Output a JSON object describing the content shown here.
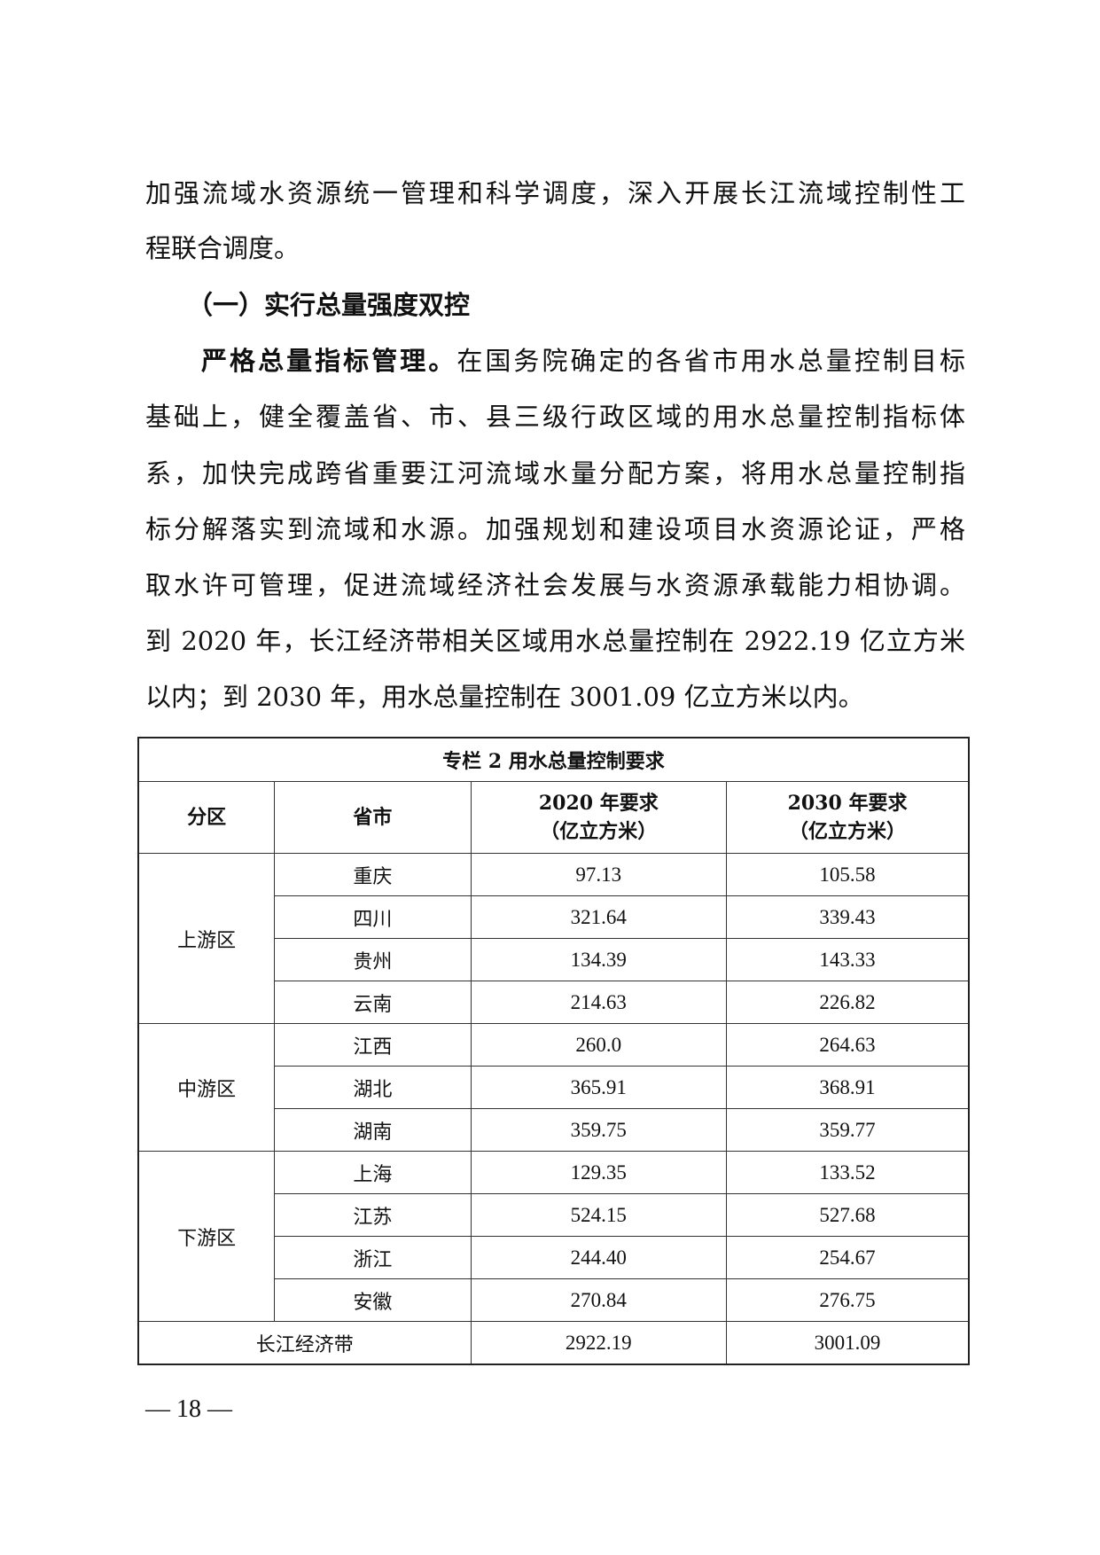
{
  "body": {
    "para1_lines": [
      "加强流域水资源统一管理和科学调度，深入开展长江流域控制性工",
      "程联合调度。"
    ],
    "heading": "（一）实行总量强度双控",
    "para2_lead": "严格总量指标管理。",
    "para2_first_rest": "在国务院确定的各省市用水总量控制目标",
    "para2_lines": [
      "基础上，健全覆盖省、市、县三级行政区域的用水总量控制指标体",
      "系，加快完成跨省重要江河流域水量分配方案，将用水总量控制指",
      "标分解落实到流域和水源。加强规划和建设项目水资源论证，严格",
      "取水许可管理，促进流域经济社会发展与水资源承载能力相协调。",
      "到 2020 年，长江经济带相关区域用水总量控制在 2922.19 亿立方米",
      "以内；到 2030 年，用水总量控制在 3001.09 亿立方米以内。"
    ]
  },
  "table": {
    "title": "专栏 2  用水总量控制要求",
    "headers": {
      "zone": "分区",
      "province": "省市",
      "y2020_line1": "2020 年要求",
      "y2020_line2": "（亿立方米）",
      "y2030_line1": "2030 年要求",
      "y2030_line2": "（亿立方米）"
    },
    "zones": [
      "上游区",
      "中游区",
      "下游区"
    ],
    "rows": [
      {
        "province": "重庆",
        "y2020": "97.13",
        "y2030": "105.58"
      },
      {
        "province": "四川",
        "y2020": "321.64",
        "y2030": "339.43"
      },
      {
        "province": "贵州",
        "y2020": "134.39",
        "y2030": "143.33"
      },
      {
        "province": "云南",
        "y2020": "214.63",
        "y2030": "226.82"
      },
      {
        "province": "江西",
        "y2020": "260.0",
        "y2030": "264.63"
      },
      {
        "province": "湖北",
        "y2020": "365.91",
        "y2030": "368.91"
      },
      {
        "province": "湖南",
        "y2020": "359.75",
        "y2030": "359.77"
      },
      {
        "province": "上海",
        "y2020": "129.35",
        "y2030": "133.52"
      },
      {
        "province": "江苏",
        "y2020": "524.15",
        "y2030": "527.68"
      },
      {
        "province": "浙江",
        "y2020": "244.40",
        "y2030": "254.67"
      },
      {
        "province": "安徽",
        "y2020": "270.84",
        "y2030": "276.75"
      }
    ],
    "total": {
      "label": "长江经济带",
      "y2020": "2922.19",
      "y2030": "3001.09"
    }
  },
  "page_number": "— 18 —"
}
